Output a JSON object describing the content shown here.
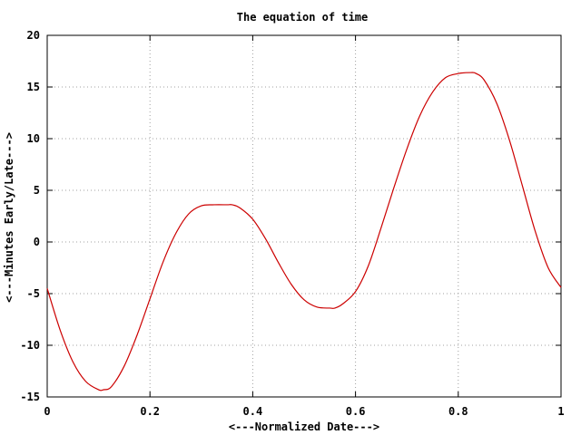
{
  "chart_data": {
    "type": "line",
    "title": "The equation of time",
    "xlabel": "<---Normalized Date--->",
    "ylabel": "<---Minutes Early/Late--->",
    "xlim": [
      0,
      1
    ],
    "ylim": [
      -15,
      20
    ],
    "x_ticks": [
      "0",
      "0.2",
      "0.4",
      "0.6",
      "0.8",
      "1"
    ],
    "y_ticks": [
      "-15",
      "-10",
      "-5",
      "0",
      "5",
      "10",
      "15",
      "20"
    ],
    "grid": true,
    "series": [
      {
        "color": "#cc0000",
        "x": [
          0,
          0.025,
          0.05,
          0.075,
          0.1,
          0.11,
          0.125,
          0.15,
          0.175,
          0.2,
          0.225,
          0.25,
          0.275,
          0.3,
          0.325,
          0.35,
          0.36,
          0.375,
          0.4,
          0.425,
          0.45,
          0.475,
          0.5,
          0.525,
          0.55,
          0.56,
          0.575,
          0.6,
          0.625,
          0.65,
          0.675,
          0.7,
          0.725,
          0.75,
          0.775,
          0.8,
          0.825,
          0.835,
          0.85,
          0.875,
          0.9,
          0.925,
          0.95,
          0.975,
          1
        ],
        "y": [
          -4.5,
          -8.5,
          -11.6,
          -13.5,
          -14.3,
          -14.3,
          -14.0,
          -12.0,
          -9.0,
          -5.5,
          -2.0,
          0.8,
          2.7,
          3.5,
          3.6,
          3.6,
          3.6,
          3.3,
          2.2,
          0.3,
          -2.0,
          -4.1,
          -5.6,
          -6.3,
          -6.4,
          -6.4,
          -6.0,
          -4.8,
          -2.3,
          1.4,
          5.3,
          9.0,
          12.2,
          14.5,
          15.9,
          16.3,
          16.4,
          16.3,
          15.7,
          13.4,
          9.8,
          5.4,
          1.0,
          -2.5,
          -4.4
        ]
      }
    ]
  }
}
